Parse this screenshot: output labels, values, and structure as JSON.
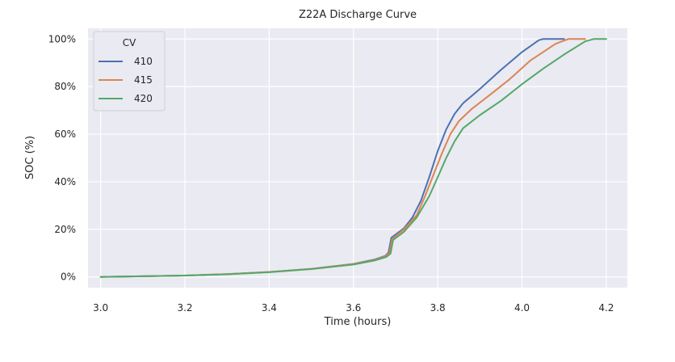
{
  "chart_data": {
    "type": "line",
    "title": "Z22A Discharge Curve",
    "xlabel": "Time (hours)",
    "ylabel": "SOC (%)",
    "xlim": [
      2.97,
      4.25
    ],
    "ylim": [
      -4.5,
      104.5
    ],
    "x_ticks": [
      3.0,
      3.2,
      3.4,
      3.6,
      3.8,
      4.0,
      4.2
    ],
    "x_tick_labels": [
      "3.0",
      "3.2",
      "3.4",
      "3.6",
      "3.8",
      "4.0",
      "4.2"
    ],
    "y_ticks": [
      0,
      20,
      40,
      60,
      80,
      100
    ],
    "y_tick_labels": [
      "0%",
      "20%",
      "40%",
      "60%",
      "80%",
      "100%"
    ],
    "grid": true,
    "background": "#eaeaf2",
    "legend": {
      "title": "CV",
      "placement": "top-left"
    },
    "series": [
      {
        "name": "410",
        "color": "#4c72b0",
        "points": [
          [
            3.0,
            0
          ],
          [
            3.1,
            0.3
          ],
          [
            3.2,
            0.6
          ],
          [
            3.3,
            1.2
          ],
          [
            3.4,
            2.1
          ],
          [
            3.5,
            3.4
          ],
          [
            3.6,
            5.5
          ],
          [
            3.65,
            7.3
          ],
          [
            3.675,
            8.8
          ],
          [
            3.683,
            10.2
          ],
          [
            3.69,
            16.5
          ],
          [
            3.72,
            20.5
          ],
          [
            3.74,
            25
          ],
          [
            3.76,
            32
          ],
          [
            3.78,
            42
          ],
          [
            3.8,
            53
          ],
          [
            3.82,
            62
          ],
          [
            3.84,
            68.5
          ],
          [
            3.86,
            73
          ],
          [
            3.9,
            79
          ],
          [
            3.95,
            87
          ],
          [
            4.0,
            94.5
          ],
          [
            4.04,
            99.5
          ],
          [
            4.05,
            100
          ],
          [
            4.1,
            100
          ]
        ]
      },
      {
        "name": "415",
        "color": "#dd8452",
        "points": [
          [
            3.0,
            0
          ],
          [
            3.1,
            0.3
          ],
          [
            3.2,
            0.6
          ],
          [
            3.3,
            1.2
          ],
          [
            3.4,
            2.1
          ],
          [
            3.5,
            3.4
          ],
          [
            3.6,
            5.4
          ],
          [
            3.65,
            7.1
          ],
          [
            3.675,
            8.6
          ],
          [
            3.685,
            10
          ],
          [
            3.692,
            16
          ],
          [
            3.72,
            20
          ],
          [
            3.75,
            26
          ],
          [
            3.77,
            34
          ],
          [
            3.79,
            43
          ],
          [
            3.81,
            52
          ],
          [
            3.83,
            60
          ],
          [
            3.85,
            65.5
          ],
          [
            3.88,
            70.5
          ],
          [
            3.92,
            76
          ],
          [
            3.97,
            83
          ],
          [
            4.02,
            91
          ],
          [
            4.08,
            98
          ],
          [
            4.11,
            100
          ],
          [
            4.15,
            100
          ]
        ]
      },
      {
        "name": "420",
        "color": "#55a868",
        "points": [
          [
            3.0,
            0
          ],
          [
            3.1,
            0.3
          ],
          [
            3.2,
            0.6
          ],
          [
            3.3,
            1.1
          ],
          [
            3.4,
            2.0
          ],
          [
            3.5,
            3.3
          ],
          [
            3.6,
            5.2
          ],
          [
            3.65,
            6.9
          ],
          [
            3.678,
            8.4
          ],
          [
            3.688,
            9.8
          ],
          [
            3.694,
            15.5
          ],
          [
            3.72,
            19
          ],
          [
            3.75,
            25
          ],
          [
            3.78,
            34
          ],
          [
            3.8,
            42
          ],
          [
            3.82,
            50
          ],
          [
            3.84,
            57
          ],
          [
            3.86,
            62.5
          ],
          [
            3.9,
            68
          ],
          [
            3.95,
            74
          ],
          [
            4.0,
            81
          ],
          [
            4.05,
            87.5
          ],
          [
            4.1,
            93.5
          ],
          [
            4.15,
            99
          ],
          [
            4.17,
            100
          ],
          [
            4.2,
            100
          ]
        ]
      }
    ]
  }
}
